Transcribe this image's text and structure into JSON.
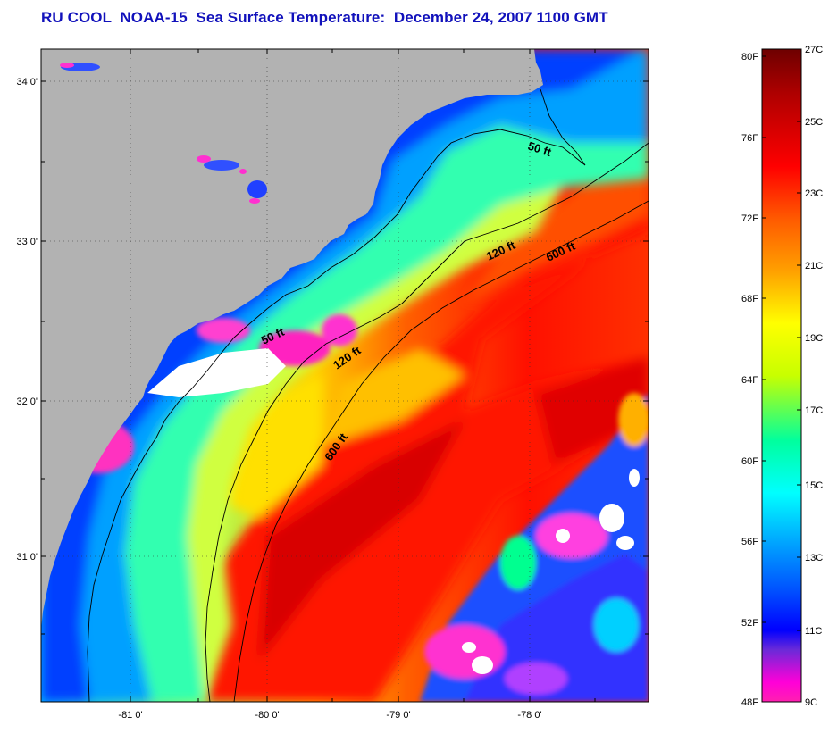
{
  "title": "RU COOL  NOAA-15  Sea Surface Temperature:  December 24, 2007 1100 GMT",
  "map": {
    "lat_ticks": [
      "34 0'",
      "33 0'",
      "32 0'",
      "31 0'"
    ],
    "lon_ticks": [
      "-81 0'",
      "-80 0'",
      "-79 0'",
      "-78 0'"
    ],
    "contour_labels": [
      "50 ft",
      "120 ft",
      "600 ft",
      "50 ft",
      "120 ft",
      "600 ft"
    ],
    "colors": {
      "land": "#b2b2b2",
      "cloud": "#ffffff",
      "coast_line": "#000000"
    }
  },
  "colorbar": {
    "fahrenheit_labels": [
      "80F",
      "76F",
      "72F",
      "68F",
      "64F",
      "60F",
      "56F",
      "52F",
      "48F"
    ],
    "celsius_labels": [
      "27C",
      "25C",
      "23C",
      "21C",
      "19C",
      "17C",
      "15C",
      "13C",
      "11C",
      "9C"
    ],
    "stops": [
      "#6e0000",
      "#b00000",
      "#ff0000",
      "#ff5a00",
      "#ffa000",
      "#ffff00",
      "#c8ff00",
      "#00ff9e",
      "#00ffff",
      "#00a0ff",
      "#0050ff",
      "#0000ff",
      "#6a2ad8",
      "#ff00d8",
      "#ff20b0"
    ]
  }
}
